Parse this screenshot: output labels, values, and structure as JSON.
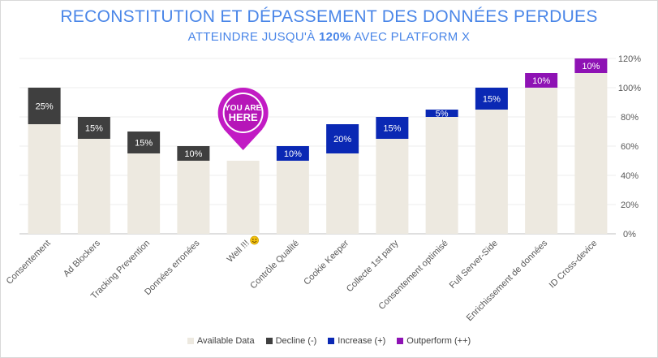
{
  "header": {
    "title": "RECONSTITUTION ET DÉPASSEMENT DES DONNÉES PERDUES",
    "subtitle_prefix": "ATTEINDRE JUSQU'À ",
    "subtitle_bold": "120%",
    "subtitle_suffix": " AVEC PLATFORM X"
  },
  "marker": {
    "line1": "YOU ARE",
    "line2": "HERE",
    "category": "Well !!!"
  },
  "colors": {
    "available": "#ede9e0",
    "decline": "#3f3f3f",
    "increase": "#0a28b4",
    "outperform": "#8e12b4",
    "pin": "#c21bc4"
  },
  "chart_data": {
    "type": "bar",
    "stacked": true,
    "title": "RECONSTITUTION ET DÉPASSEMENT DES DONNÉES PERDUES",
    "subtitle": "ATTEINDRE JUSQU'À 120% AVEC PLATFORM X",
    "categories": [
      "Consentement",
      "Ad Blockers",
      "Tracking Prevention",
      "Données erronées",
      "Well !!!",
      "Contrôle Qualité",
      "Cookie Keeper",
      "Collecte 1st party",
      "Consentement optimisé",
      "Full Server-Side",
      "Enrichissement de données",
      "ID Cross-device"
    ],
    "series": [
      {
        "name": "Available Data",
        "key": "available",
        "values": [
          75,
          65,
          55,
          50,
          50,
          50,
          55,
          65,
          80,
          85,
          100,
          110
        ]
      },
      {
        "name": "Decline (-)",
        "key": "decline",
        "values": [
          25,
          15,
          15,
          10,
          0,
          0,
          0,
          0,
          0,
          0,
          0,
          0
        ]
      },
      {
        "name": "Increase (+)",
        "key": "increase",
        "values": [
          0,
          0,
          0,
          0,
          0,
          10,
          20,
          15,
          5,
          15,
          0,
          0
        ]
      },
      {
        "name": "Outperform (++)",
        "key": "outperform",
        "values": [
          0,
          0,
          0,
          0,
          0,
          0,
          0,
          0,
          0,
          0,
          10,
          10
        ]
      }
    ],
    "data_labels": [
      "25%",
      "15%",
      "15%",
      "10%",
      "",
      "10%",
      "20%",
      "15%",
      "5%",
      "15%",
      "10%",
      "10%"
    ],
    "y_axis": {
      "position": "right",
      "ylim": [
        0,
        120
      ],
      "ticks": [
        "0%",
        "20%",
        "40%",
        "60%",
        "80%",
        "100%",
        "120%"
      ]
    },
    "legend_position": "bottom",
    "gridlines": true
  }
}
